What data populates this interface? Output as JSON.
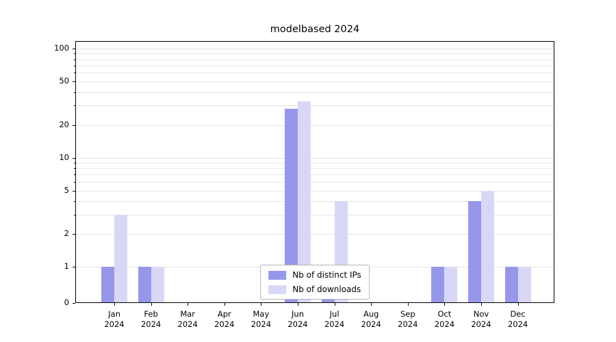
{
  "chart_data": {
    "type": "bar",
    "title": "modelbased 2024",
    "yscale": "log above 1, linear 0-1",
    "categories": [
      "Jan\n2024",
      "Feb\n2024",
      "Mar\n2024",
      "Apr\n2024",
      "May\n2024",
      "Jun\n2024",
      "Jul\n2024",
      "Aug\n2024",
      "Sep\n2024",
      "Oct\n2024",
      "Nov\n2024",
      "Dec\n2024"
    ],
    "series": [
      {
        "name": "Nb of distinct IPs",
        "color": "#9797ea",
        "values": [
          1,
          1,
          0,
          0,
          0,
          28,
          1,
          0,
          0,
          1,
          4,
          1
        ]
      },
      {
        "name": "Nb of downloads",
        "color": "#d8d8f6",
        "values": [
          3,
          1,
          0,
          0,
          0,
          33,
          4,
          0,
          0,
          1,
          5,
          1
        ]
      }
    ],
    "yticks": [
      0,
      1,
      2,
      5,
      10,
      20,
      50,
      100
    ],
    "gridlines": [
      1,
      2,
      3,
      4,
      5,
      6,
      7,
      8,
      9,
      10,
      20,
      30,
      40,
      50,
      60,
      70,
      80,
      90,
      100
    ],
    "ylim": [
      0,
      117
    ],
    "xlabel": "",
    "ylabel": "",
    "grid": true,
    "legend_position": "lower center"
  }
}
